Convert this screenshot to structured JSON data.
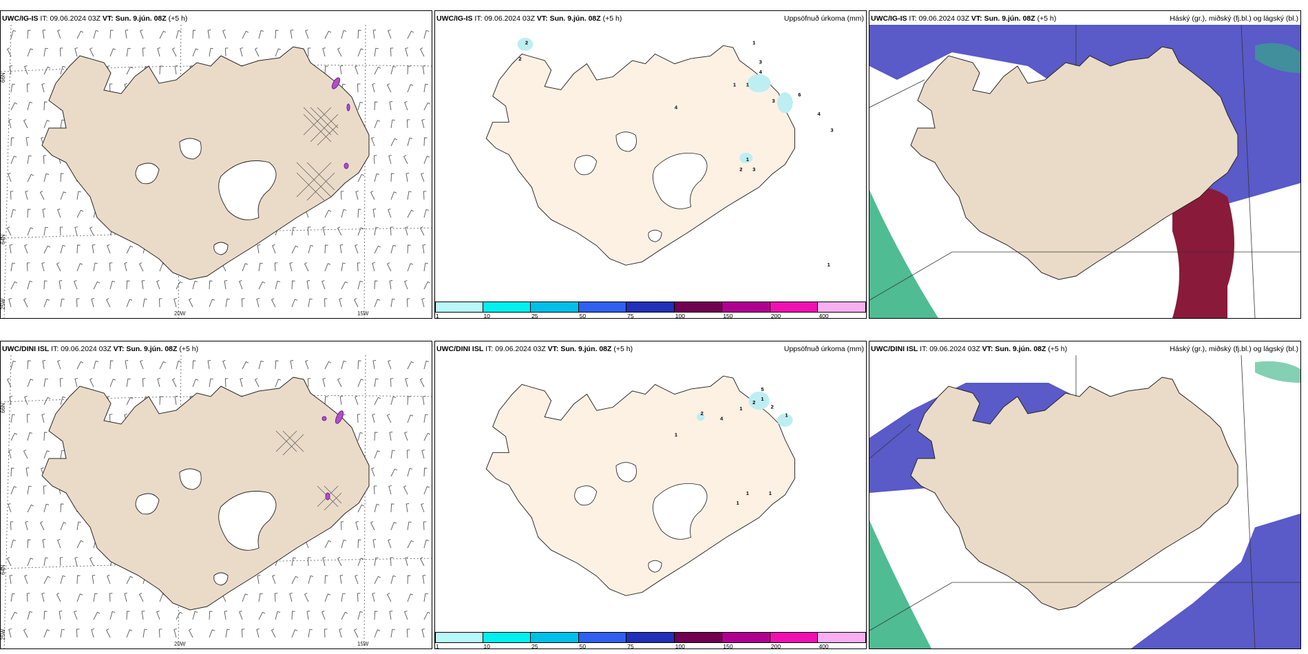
{
  "panels": [
    {
      "id": "top-wind",
      "model": "UWC/IG-IS",
      "it_label": "IT:",
      "it": "09.06.2024 03Z",
      "vt_label": "VT:",
      "vt": "Sun. 9.jún. 08Z",
      "lead": "(+5 h)",
      "right_title": ""
    },
    {
      "id": "top-precip",
      "model": "UWC/IG-IS",
      "it_label": "IT:",
      "it": "09.06.2024 03Z",
      "vt_label": "VT:",
      "vt": "Sun. 9.jún. 08Z",
      "lead": "(+5 h)",
      "right_title": "Uppsöfnuð úrkoma (mm)"
    },
    {
      "id": "top-cloud",
      "model": "UWC/IG-IS",
      "it_label": "IT:",
      "it": "09.06.2024 03Z",
      "vt_label": "VT:",
      "vt": "Sun. 9.jún. 08Z",
      "lead": "(+5 h)",
      "right_title": "Háský (gr.), miðský (fj.bl.) og lágský (bl.)"
    },
    {
      "id": "bottom-wind",
      "model": "UWC/DINI ISL",
      "it_label": "IT:",
      "it": "09.06.2024 03Z",
      "vt_label": "VT:",
      "vt": "Sun. 9.jún. 08Z",
      "lead": "(+5 h)",
      "right_title": ""
    },
    {
      "id": "bottom-precip",
      "model": "UWC/DINI ISL",
      "it_label": "IT:",
      "it": "09.06.2024 03Z",
      "vt_label": "VT:",
      "vt": "Sun. 9.jún. 08Z",
      "lead": "(+5 h)",
      "right_title": "Uppsöfnuð úrkoma (mm)"
    },
    {
      "id": "bottom-cloud",
      "model": "UWC/DINI ISL",
      "it_label": "IT:",
      "it": "09.06.2024 03Z",
      "vt_label": "VT:",
      "vt": "Sun. 9.jún. 08Z",
      "lead": "(+5 h)",
      "right_title": "Háský (gr.), miðský (fj.bl.) og lágský (bl.)"
    }
  ],
  "grid_labels": {
    "lat_66": "66N",
    "lat_64": "64N",
    "lon_25": "25W",
    "lon_20": "20W",
    "lon_15": "15W"
  },
  "precip_colorbar": {
    "ticks": [
      "1",
      "10",
      "25",
      "50",
      "75",
      "100",
      "150",
      "200",
      "400"
    ],
    "colors": [
      "#b8f8f8",
      "#00f0f0",
      "#00c0e8",
      "#3060f0",
      "#2030b8",
      "#700050",
      "#b00090",
      "#f010b0",
      "#f8b0f0"
    ]
  },
  "precip_values_top": [
    "1",
    "3",
    "2",
    "2",
    "4",
    "1",
    "1",
    "4",
    "3",
    "6",
    "4",
    "3",
    "1",
    "2",
    "3",
    "1"
  ],
  "precip_values_bottom": [
    "5",
    "1",
    "2",
    "2",
    "1",
    "1",
    "2",
    "4",
    "1",
    "1",
    "1",
    "1"
  ],
  "colors": {
    "land": "#eadbc8",
    "land_precip": "#fdf1e4",
    "low_cloud": "#5a5ac8",
    "mid_cloud": "#8a1a3a",
    "high_cloud": "#30b080",
    "coast": "#222222"
  }
}
